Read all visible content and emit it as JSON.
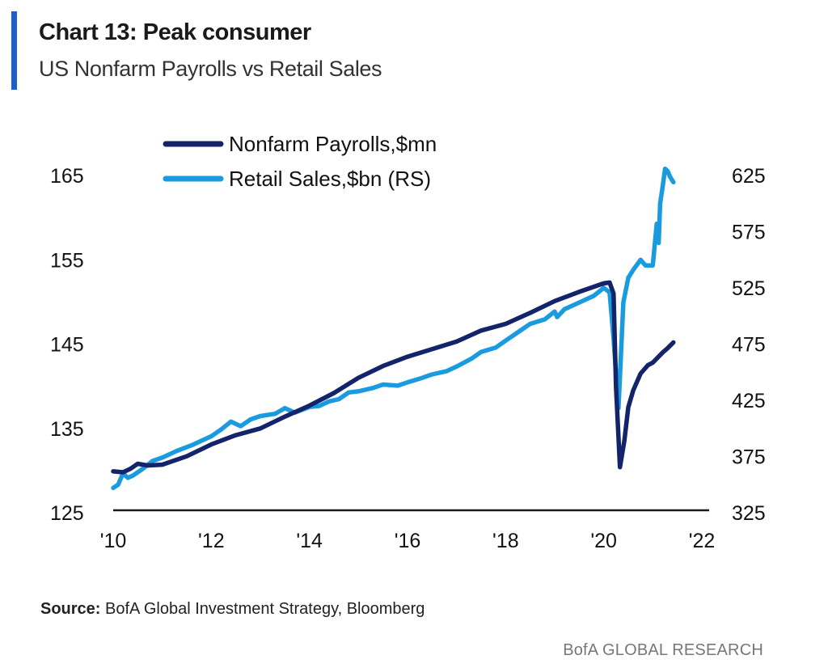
{
  "header": {
    "title": "Chart 13: Peak consumer",
    "subtitle": "US Nonfarm Payrolls vs Retail Sales"
  },
  "footer": {
    "source_label": "Source:",
    "source_text": "BofA Global Investment Strategy, Bloomberg",
    "brand": "BofA GLOBAL RESEARCH"
  },
  "colors": {
    "accent": "#1f5fc8",
    "payrolls": "#13246b",
    "retail": "#1b9bdf"
  },
  "chart_data": {
    "type": "line",
    "title": "",
    "xlabel": "",
    "ylabel": "",
    "y2label": "",
    "x_ticks": [
      "'10",
      "'12",
      "'14",
      "'16",
      "'18",
      "'20",
      "'22"
    ],
    "x_tick_years": [
      2010,
      2012,
      2014,
      2016,
      2018,
      2020,
      2022
    ],
    "xlim": [
      2010,
      2022
    ],
    "ylim": [
      125,
      165
    ],
    "y_ticks": [
      125,
      135,
      145,
      155,
      165
    ],
    "y2lim": [
      325,
      625
    ],
    "y2_ticks": [
      325,
      375,
      425,
      475,
      525,
      575,
      625
    ],
    "grid": false,
    "legend_position": "top-center",
    "series": [
      {
        "name": "Nonfarm Payrolls,$mn",
        "axis": "left",
        "x": [
          2010.0,
          2010.2,
          2010.35,
          2010.5,
          2010.7,
          2011.0,
          2011.5,
          2012.0,
          2012.5,
          2013.0,
          2013.5,
          2014.0,
          2014.5,
          2015.0,
          2015.5,
          2016.0,
          2016.5,
          2017.0,
          2017.5,
          2018.0,
          2018.5,
          2019.0,
          2019.5,
          2020.0,
          2020.12,
          2020.2,
          2020.25,
          2020.33,
          2020.42,
          2020.5,
          2020.6,
          2020.75,
          2020.9,
          2021.0,
          2021.1,
          2021.2,
          2021.3,
          2021.42
        ],
        "values": [
          129.9,
          129.8,
          130.2,
          130.8,
          130.6,
          130.7,
          131.7,
          133.1,
          134.2,
          135.0,
          136.4,
          137.7,
          139.2,
          141.0,
          142.4,
          143.5,
          144.4,
          145.3,
          146.6,
          147.4,
          148.7,
          150.1,
          151.2,
          152.2,
          152.3,
          151.0,
          140.0,
          130.4,
          133.5,
          137.5,
          139.5,
          141.5,
          142.5,
          142.8,
          143.4,
          144.0,
          144.5,
          145.2
        ]
      },
      {
        "name": "Retail Sales,$bn (RS)",
        "axis": "right",
        "x": [
          2010.0,
          2010.1,
          2010.2,
          2010.3,
          2010.4,
          2010.6,
          2010.8,
          2011.0,
          2011.3,
          2011.6,
          2011.8,
          2012.0,
          2012.2,
          2012.4,
          2012.6,
          2012.8,
          2013.0,
          2013.3,
          2013.5,
          2013.7,
          2014.0,
          2014.2,
          2014.4,
          2014.6,
          2014.8,
          2015.0,
          2015.3,
          2015.5,
          2015.8,
          2016.0,
          2016.3,
          2016.5,
          2016.8,
          2017.0,
          2017.3,
          2017.5,
          2017.8,
          2018.0,
          2018.3,
          2018.5,
          2018.8,
          2019.0,
          2019.05,
          2019.2,
          2019.5,
          2019.8,
          2020.0,
          2020.12,
          2020.2,
          2020.3,
          2020.4,
          2020.5,
          2020.6,
          2020.75,
          2020.85,
          2021.0,
          2021.08,
          2021.12,
          2021.15,
          2021.2,
          2021.25,
          2021.3,
          2021.35,
          2021.42
        ],
        "values": [
          347,
          350,
          360,
          356,
          358,
          364,
          371,
          374,
          380,
          385,
          389,
          393,
          399,
          406,
          402,
          408,
          411,
          413,
          418,
          414,
          419,
          420,
          424,
          426,
          432,
          433,
          436,
          439,
          438,
          441,
          445,
          448,
          451,
          455,
          462,
          468,
          472,
          478,
          487,
          493,
          497,
          504,
          499,
          506,
          512,
          518,
          525,
          521,
          480,
          418,
          512,
          534,
          541,
          550,
          545,
          545,
          582,
          565,
          600,
          615,
          631,
          629,
          624,
          619
        ]
      }
    ]
  }
}
